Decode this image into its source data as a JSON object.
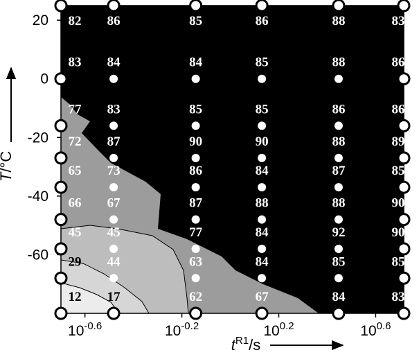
{
  "chart_data": {
    "type": "contour",
    "x_label": "tR1/s",
    "y_label": "T/°C",
    "x": [
      0.2,
      0.33,
      0.72,
      1.35,
      2.8,
      5.2
    ],
    "y": [
      25,
      0,
      -16,
      -27,
      -37,
      -48,
      -58,
      -68,
      -80
    ],
    "values": [
      [
        82,
        86,
        85,
        86,
        88,
        83
      ],
      [
        83,
        84,
        84,
        85,
        88,
        86
      ],
      [
        77,
        83,
        85,
        85,
        86,
        86
      ],
      [
        72,
        87,
        90,
        90,
        88,
        89
      ],
      [
        65,
        73,
        86,
        84,
        87,
        85
      ],
      [
        66,
        67,
        87,
        88,
        88,
        90
      ],
      [
        45,
        45,
        77,
        84,
        92,
        90
      ],
      [
        29,
        44,
        63,
        84,
        85,
        85
      ],
      [
        12,
        17,
        62,
        67,
        84,
        83
      ]
    ],
    "xlim": [
      0.2,
      5.2
    ],
    "xscale": "log",
    "xticks": [
      {
        "value": 0.2512,
        "label": "10-0.6"
      },
      {
        "value": 0.631,
        "label": "10-0.2"
      },
      {
        "value": 1.585,
        "label": "100.2"
      },
      {
        "value": 3.981,
        "label": "100.6"
      }
    ],
    "ylim": [
      -80,
      25
    ],
    "yticks": [
      20,
      0,
      -20,
      -40,
      -60
    ]
  }
}
